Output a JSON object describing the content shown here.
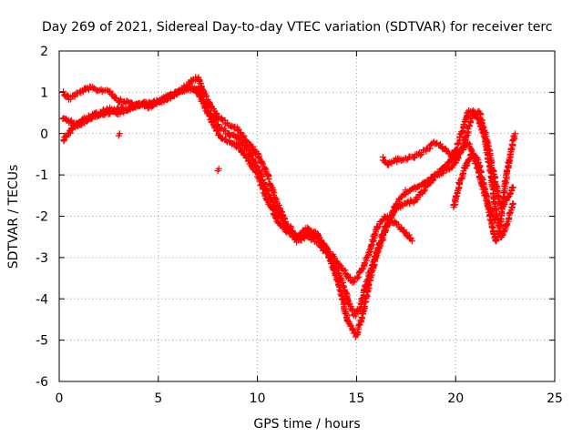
{
  "chart_data": {
    "type": "scatter",
    "title": "Day 269 of 2021, Sidereal Day-to-day VTEC variation (SDTVAR) for receiver terc",
    "xlabel": "GPS time / hours",
    "ylabel": "SDTVAR / TECUs",
    "xlim": [
      0,
      25
    ],
    "ylim": [
      -6,
      2
    ],
    "x_ticks": [
      0,
      5,
      10,
      15,
      20,
      25
    ],
    "y_ticks": [
      -6,
      -5,
      -4,
      -3,
      -2,
      -1,
      0,
      1,
      2
    ],
    "grid": true,
    "marker": "+",
    "color": "#ff0000",
    "series": [
      {
        "x": [
          0.2,
          0.5,
          1.0,
          1.5,
          2.0,
          2.5,
          3.0,
          3.5,
          4.0,
          4.5,
          5.0,
          5.5,
          6.0,
          6.5,
          6.8,
          7.0,
          7.3,
          7.6,
          8.0,
          8.3,
          8.6,
          9.0,
          9.5,
          10.0,
          10.5,
          11.0,
          11.5,
          12.0,
          12.5,
          13.0,
          13.5,
          14.0,
          14.5,
          14.8,
          15.0,
          15.3,
          15.7,
          16.0,
          16.5,
          17.0,
          17.5,
          17.8
        ],
        "values": [
          1.0,
          0.85,
          1.0,
          1.1,
          1.05,
          1.05,
          0.8,
          0.75,
          0.7,
          0.65,
          0.75,
          0.9,
          1.0,
          1.2,
          1.3,
          1.35,
          1.0,
          0.7,
          0.4,
          0.3,
          0.2,
          0.1,
          -0.2,
          -0.5,
          -1.0,
          -1.7,
          -2.2,
          -2.5,
          -2.4,
          -2.5,
          -2.8,
          -3.1,
          -3.4,
          -3.6,
          -3.5,
          -3.3,
          -2.8,
          -2.3,
          -2.0,
          -2.2,
          -2.4,
          -2.6
        ]
      },
      {
        "x": [
          0.2,
          0.5,
          1.0,
          1.5,
          2.0,
          2.5,
          3.0,
          3.5,
          4.0,
          4.5,
          5.0,
          5.5,
          6.0,
          6.5,
          7.0,
          7.3,
          7.6,
          8.0,
          8.5,
          9.0,
          9.5,
          10.0,
          10.5,
          11.0,
          11.5,
          12.0,
          12.5,
          13.0,
          13.5,
          14.0,
          14.3,
          14.6,
          14.9,
          15.2,
          15.5,
          16.0,
          16.5,
          17.0,
          17.5,
          18.0,
          18.5,
          19.0,
          19.5,
          20.0,
          20.3,
          20.6,
          20.9,
          21.2,
          21.5,
          21.8,
          22.0
        ],
        "values": [
          0.4,
          0.3,
          0.2,
          0.35,
          0.45,
          0.5,
          0.6,
          0.6,
          0.7,
          0.7,
          0.75,
          0.85,
          1.0,
          1.1,
          1.1,
          0.8,
          0.5,
          0.2,
          0.0,
          -0.1,
          -0.4,
          -0.8,
          -1.4,
          -1.9,
          -2.3,
          -2.6,
          -2.5,
          -2.6,
          -2.9,
          -3.3,
          -3.6,
          -4.1,
          -4.4,
          -4.2,
          -3.6,
          -2.9,
          -2.3,
          -1.7,
          -1.4,
          -1.3,
          -1.2,
          -1.0,
          -0.9,
          -0.7,
          -0.4,
          -0.2,
          -0.5,
          -1.0,
          -1.5,
          -1.9,
          -2.1
        ]
      },
      {
        "x": [
          0.2,
          0.6,
          1.0,
          1.5,
          2.0,
          2.5,
          3.0,
          3.5,
          4.0,
          4.5,
          5.0,
          5.5,
          6.0,
          6.5,
          7.0,
          7.3,
          7.6,
          8.0,
          8.5,
          9.0,
          9.5,
          10.0,
          10.5,
          11.0,
          11.5,
          12.0,
          12.5,
          13.0,
          13.5,
          14.0,
          14.3,
          14.6,
          15.0,
          15.4,
          15.8,
          16.2,
          16.6,
          17.0,
          17.5,
          18.0,
          18.5,
          19.0,
          19.5,
          20.0,
          20.3,
          20.6,
          20.9,
          21.2,
          21.5,
          21.8,
          22.0,
          22.3,
          22.6,
          22.9
        ],
        "values": [
          -0.2,
          0.1,
          0.3,
          0.4,
          0.5,
          0.6,
          0.5,
          0.6,
          0.7,
          0.75,
          0.8,
          0.9,
          1.0,
          1.1,
          1.0,
          0.7,
          0.4,
          0.0,
          -0.2,
          -0.3,
          -0.6,
          -1.0,
          -1.6,
          -2.1,
          -2.4,
          -2.5,
          -2.3,
          -2.4,
          -2.8,
          -3.5,
          -4.0,
          -4.6,
          -4.9,
          -4.2,
          -3.3,
          -2.6,
          -2.1,
          -1.8,
          -1.7,
          -1.6,
          -1.3,
          -1.0,
          -0.8,
          -0.4,
          0.0,
          0.5,
          0.55,
          0.3,
          -0.2,
          -1.0,
          -1.8,
          -2.5,
          -2.2,
          -1.7
        ]
      },
      {
        "x": [
          16.3,
          16.6,
          17.0,
          17.5,
          18.0,
          18.5,
          19.0,
          19.5,
          20.0,
          20.4,
          20.8,
          21.2,
          21.6,
          22.0,
          22.3,
          22.6,
          22.9
        ],
        "values": [
          -0.6,
          -0.75,
          -0.65,
          -0.6,
          -0.55,
          -0.4,
          -0.2,
          -0.4,
          -0.6,
          -0.3,
          0.4,
          0.5,
          -0.2,
          -1.2,
          -1.8,
          -1.6,
          -1.3
        ]
      },
      {
        "x": [
          19.9,
          20.2,
          20.5,
          20.8,
          21.1,
          21.4,
          21.7,
          22.0,
          22.2,
          22.5,
          22.8,
          23.0
        ],
        "values": [
          -1.8,
          -1.2,
          -0.8,
          -0.5,
          -0.6,
          -1.2,
          -1.9,
          -2.6,
          -2.4,
          -1.2,
          -0.4,
          0.0
        ]
      },
      {
        "x": [
          8.0,
          8.05,
          3.0,
          3.05
        ],
        "values": [
          -0.9,
          -0.85,
          -0.05,
          0.0
        ]
      }
    ]
  }
}
